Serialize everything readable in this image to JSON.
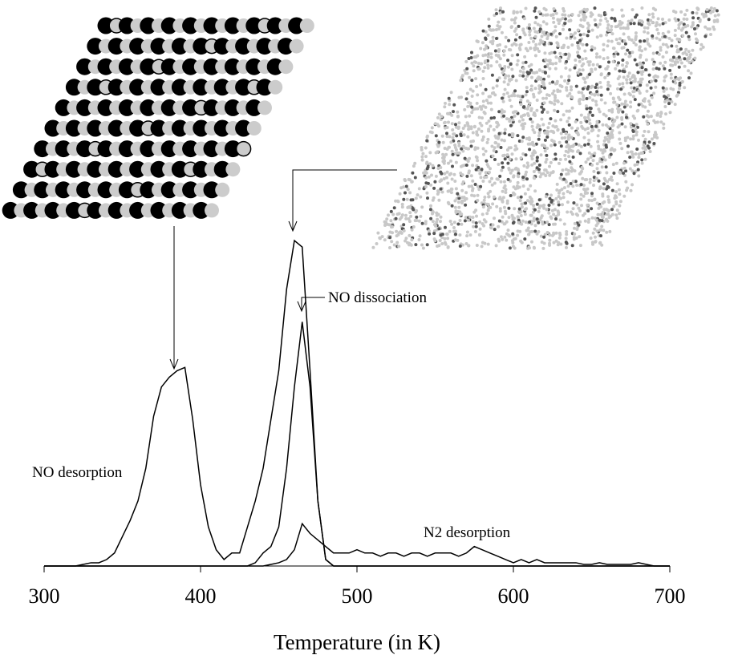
{
  "chart_data": {
    "type": "line",
    "x_label": "Temperature (in K)",
    "x": [
      300,
      305,
      310,
      315,
      320,
      325,
      330,
      335,
      340,
      345,
      350,
      355,
      360,
      365,
      370,
      375,
      380,
      385,
      390,
      395,
      400,
      405,
      410,
      415,
      420,
      425,
      430,
      435,
      440,
      445,
      450,
      455,
      460,
      465,
      470,
      475,
      480,
      485,
      490,
      495,
      500,
      505,
      510,
      515,
      520,
      525,
      530,
      535,
      540,
      545,
      550,
      555,
      560,
      565,
      570,
      575,
      580,
      585,
      590,
      595,
      600,
      605,
      610,
      615,
      620,
      625,
      630,
      635,
      640,
      645,
      650,
      655,
      660,
      665,
      670,
      675,
      680,
      685,
      690,
      695,
      700
    ],
    "series": [
      {
        "name": "NO desorption",
        "color": "#000000",
        "values": [
          0,
          0,
          0,
          0,
          0,
          0.5,
          1,
          1,
          2,
          4,
          9,
          14,
          20,
          30,
          46,
          55,
          58,
          60,
          61,
          45,
          25,
          12,
          5,
          2,
          4,
          4,
          12,
          20,
          30,
          45,
          60,
          85,
          100,
          98,
          60,
          20,
          2,
          0,
          0,
          0,
          0,
          0,
          0,
          0,
          0,
          0,
          0,
          0,
          0,
          0,
          0,
          0,
          0,
          0,
          0,
          0,
          0,
          0,
          0,
          0,
          0,
          0,
          0,
          0,
          0,
          0,
          0,
          0,
          0,
          0,
          0,
          0,
          0,
          0,
          0,
          0,
          0,
          0,
          0,
          0,
          0
        ]
      },
      {
        "name": "NO dissociation",
        "color": "#000000",
        "values": [
          0,
          0,
          0,
          0,
          0,
          0,
          0,
          0,
          0,
          0,
          0,
          0,
          0,
          0,
          0,
          0,
          0,
          0,
          0,
          0,
          0,
          0,
          0,
          0,
          0,
          0,
          0,
          1,
          4,
          6,
          12,
          30,
          55,
          75,
          55,
          20,
          2,
          0,
          0,
          0,
          0,
          0,
          0,
          0,
          0,
          0,
          0,
          0,
          0,
          0,
          0,
          0,
          0,
          0,
          0,
          0,
          0,
          0,
          0,
          0,
          0,
          0,
          0,
          0,
          0,
          0,
          0,
          0,
          0,
          0,
          0,
          0,
          0,
          0,
          0,
          0,
          0,
          0,
          0,
          0,
          0
        ]
      },
      {
        "name": "N2 desorption",
        "color": "#000000",
        "values": [
          0,
          0,
          0,
          0,
          0,
          0,
          0,
          0,
          0,
          0,
          0,
          0,
          0,
          0,
          0,
          0,
          0,
          0,
          0,
          0,
          0,
          0,
          0,
          0,
          0,
          0,
          0,
          0,
          0,
          0.5,
          1,
          2,
          5,
          13,
          10,
          8,
          6,
          4,
          4,
          4,
          5,
          4,
          4,
          3,
          4,
          4,
          3,
          4,
          4,
          3,
          4,
          4,
          4,
          3,
          4,
          6,
          5,
          4,
          3,
          2,
          1,
          2,
          1,
          2,
          1,
          1,
          1,
          1,
          1,
          0.5,
          0.5,
          1,
          0.5,
          0.5,
          0.5,
          0.5,
          1,
          0.5,
          0,
          0,
          0
        ]
      }
    ],
    "xlim": [
      300,
      700
    ],
    "xticks": [
      300,
      400,
      500,
      600,
      700
    ],
    "ylim": [
      0,
      100
    ]
  }
}
